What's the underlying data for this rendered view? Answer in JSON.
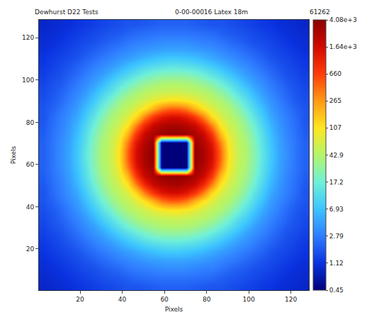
{
  "chart_data": {
    "type": "heatmap",
    "title": "0-00-00016 Latex 18m",
    "annotations": [
      "Dewhurst D22 Tests",
      "61262"
    ],
    "x_label": "Pixels",
    "y_label": "Pixels",
    "x": [
      2.5,
      6.5,
      10.5,
      14.5,
      18.5,
      22.5,
      26.5,
      30.5,
      34.5,
      38.5,
      42.5,
      46.5,
      50.5,
      54.5,
      58.5,
      62.5,
      66.5,
      70.5,
      74.5,
      78.5,
      82.5,
      86.5,
      90.5,
      94.5,
      98.5,
      102.5,
      106.5,
      110.5,
      114.5,
      118.5,
      122.5,
      126.5
    ],
    "y": [
      2.5,
      6.5,
      10.5,
      14.5,
      18.5,
      22.5,
      26.5,
      30.5,
      34.5,
      38.5,
      42.5,
      46.5,
      50.5,
      54.5,
      58.5,
      62.5,
      66.5,
      70.5,
      74.5,
      78.5,
      82.5,
      86.5,
      90.5,
      94.5,
      98.5,
      102.5,
      106.5,
      110.5,
      114.5,
      118.5,
      122.5,
      126.5
    ],
    "z": [
      [
        0.9,
        0.95,
        1.0,
        1.05,
        1.15,
        1.2,
        1.3,
        1.4,
        1.5,
        1.6,
        1.7,
        1.7,
        1.8,
        1.9,
        2.0,
        2.0,
        2.0,
        2.0,
        1.9,
        1.8,
        1.7,
        1.7,
        1.6,
        1.5,
        1.4,
        1.3,
        1.2,
        1.15,
        1.05,
        1.0,
        0.95,
        0.9
      ],
      [
        0.95,
        1.0,
        1.05,
        1.15,
        1.25,
        1.35,
        1.45,
        1.6,
        1.7,
        1.8,
        2.0,
        2.2,
        2.3,
        2.4,
        2.5,
        2.5,
        2.5,
        2.5,
        2.4,
        2.3,
        2.2,
        2.0,
        1.8,
        1.7,
        1.6,
        1.45,
        1.35,
        1.25,
        1.15,
        1.05,
        1.0,
        0.95
      ],
      [
        1.0,
        1.05,
        1.15,
        1.25,
        1.4,
        1.5,
        1.6,
        1.8,
        2.0,
        2.2,
        2.5,
        2.8,
        2.9,
        3.1,
        3.3,
        3.4,
        3.4,
        3.3,
        3.1,
        2.9,
        2.8,
        2.5,
        2.2,
        2.0,
        1.8,
        1.6,
        1.5,
        1.4,
        1.25,
        1.15,
        1.05,
        1.0
      ],
      [
        1.05,
        1.15,
        1.25,
        1.4,
        1.5,
        1.7,
        1.9,
        2.2,
        2.5,
        2.8,
        3.2,
        3.6,
        3.9,
        4.2,
        4.5,
        4.6,
        4.6,
        4.5,
        4.2,
        3.9,
        3.6,
        3.2,
        2.8,
        2.5,
        2.2,
        1.9,
        1.7,
        1.5,
        1.4,
        1.25,
        1.15,
        1.05
      ],
      [
        1.15,
        1.25,
        1.4,
        1.5,
        1.7,
        2.0,
        2.3,
        2.7,
        3.1,
        3.7,
        4.2,
        4.9,
        5.8,
        6.5,
        7.2,
        7.5,
        7.5,
        7.2,
        6.5,
        5.8,
        4.9,
        4.2,
        3.7,
        3.1,
        2.7,
        2.3,
        2.0,
        1.7,
        1.5,
        1.4,
        1.25,
        1.15
      ],
      [
        1.2,
        1.35,
        1.5,
        1.7,
        2.0,
        2.3,
        2.8,
        3.4,
        4.0,
        4.9,
        6.3,
        7.8,
        9.5,
        11,
        12,
        13,
        13,
        12,
        11,
        9.5,
        7.8,
        6.3,
        4.9,
        4.0,
        3.4,
        2.8,
        2.3,
        2.0,
        1.7,
        1.5,
        1.35,
        1.2
      ],
      [
        1.3,
        1.45,
        1.6,
        1.9,
        2.3,
        2.8,
        3.5,
        4.2,
        5.6,
        7.5,
        10,
        13,
        17,
        20,
        23,
        24,
        24,
        23,
        20,
        17,
        13,
        10,
        7.5,
        5.6,
        4.2,
        3.5,
        2.8,
        2.3,
        1.9,
        1.6,
        1.45,
        1.3
      ],
      [
        1.4,
        1.6,
        1.8,
        2.2,
        2.7,
        3.4,
        4.2,
        5.8,
        8.5,
        12,
        17,
        23,
        29,
        34,
        38,
        40,
        40,
        38,
        34,
        29,
        23,
        17,
        12,
        8.5,
        5.8,
        4.2,
        3.4,
        2.7,
        2.2,
        1.8,
        1.6,
        1.4
      ],
      [
        1.5,
        1.7,
        2.0,
        2.5,
        3.1,
        4.0,
        5.6,
        8.5,
        12,
        19,
        27,
        36,
        43,
        48,
        53,
        55,
        55,
        53,
        48,
        43,
        36,
        27,
        19,
        12,
        8.5,
        5.6,
        4.0,
        3.1,
        2.5,
        2.0,
        1.7,
        1.5
      ],
      [
        1.6,
        1.8,
        2.2,
        2.8,
        3.7,
        4.9,
        7.5,
        12,
        19,
        29,
        40,
        48,
        60,
        77,
        95,
        108,
        108,
        95,
        77,
        60,
        48,
        40,
        29,
        19,
        12,
        7.5,
        4.9,
        3.7,
        2.8,
        2.2,
        1.8,
        1.6
      ],
      [
        1.7,
        2.0,
        2.5,
        3.2,
        4.2,
        6.3,
        10,
        17,
        27,
        40,
        50,
        70,
        108,
        190,
        340,
        440,
        440,
        340,
        190,
        108,
        70,
        50,
        40,
        27,
        17,
        10,
        6.3,
        4.2,
        3.2,
        2.5,
        2.0,
        1.7
      ],
      [
        1.7,
        2.2,
        2.8,
        3.6,
        4.9,
        7.8,
        13,
        23,
        36,
        48,
        70,
        125,
        340,
        750,
        1250,
        1550,
        1550,
        1250,
        750,
        340,
        125,
        70,
        48,
        36,
        23,
        13,
        7.8,
        4.9,
        3.6,
        2.8,
        2.2,
        1.7
      ],
      [
        1.8,
        2.3,
        2.9,
        3.9,
        5.8,
        9.5,
        17,
        29,
        43,
        60,
        108,
        340,
        950,
        1850,
        2450,
        2800,
        2800,
        2450,
        1850,
        950,
        340,
        108,
        60,
        43,
        29,
        17,
        9.5,
        5.8,
        3.9,
        2.9,
        2.3,
        1.8
      ],
      [
        1.9,
        2.4,
        3.1,
        4.2,
        6.5,
        11,
        20,
        34,
        48,
        77,
        190,
        750,
        1850,
        2800,
        3400,
        3800,
        3800,
        3400,
        2800,
        1850,
        750,
        190,
        77,
        48,
        34,
        20,
        11,
        6.5,
        4.2,
        3.1,
        2.4,
        1.9
      ],
      [
        2.0,
        2.5,
        3.3,
        4.5,
        7.2,
        12,
        23,
        38,
        53,
        95,
        340,
        1250,
        2450,
        3400,
        0.45,
        0.45,
        0.45,
        0.45,
        3400,
        2450,
        1250,
        340,
        95,
        53,
        38,
        23,
        12,
        7.2,
        4.5,
        3.3,
        2.5,
        2.0
      ],
      [
        2.0,
        2.5,
        3.4,
        4.6,
        7.5,
        13,
        24,
        40,
        55,
        108,
        440,
        1550,
        2800,
        3800,
        0.45,
        0.45,
        0.45,
        0.45,
        3800,
        2800,
        1550,
        440,
        108,
        55,
        40,
        24,
        13,
        7.5,
        4.6,
        3.4,
        2.5,
        2.0
      ],
      [
        2.0,
        2.5,
        3.4,
        4.6,
        7.5,
        13,
        24,
        40,
        55,
        108,
        440,
        1550,
        2800,
        3800,
        0.45,
        0.45,
        0.45,
        0.45,
        3800,
        2800,
        1550,
        440,
        108,
        55,
        40,
        24,
        13,
        7.5,
        4.6,
        3.4,
        2.5,
        2.0
      ],
      [
        2.0,
        2.5,
        3.3,
        4.5,
        7.2,
        12,
        23,
        38,
        53,
        95,
        340,
        1250,
        2450,
        3400,
        0.45,
        0.45,
        0.45,
        0.45,
        3400,
        2450,
        1250,
        340,
        95,
        53,
        38,
        23,
        12,
        7.2,
        4.5,
        3.3,
        2.5,
        2.0
      ],
      [
        1.9,
        2.4,
        3.1,
        4.2,
        6.5,
        11,
        20,
        34,
        48,
        77,
        190,
        750,
        1850,
        2800,
        3400,
        3800,
        3800,
        3400,
        2800,
        1850,
        750,
        190,
        77,
        48,
        34,
        20,
        11,
        6.5,
        4.2,
        3.1,
        2.4,
        1.9
      ],
      [
        1.8,
        2.3,
        2.9,
        3.9,
        5.8,
        9.5,
        17,
        29,
        43,
        60,
        108,
        340,
        950,
        1850,
        2450,
        2800,
        2800,
        2450,
        1850,
        950,
        340,
        108,
        60,
        43,
        29,
        17,
        9.5,
        5.8,
        3.9,
        2.9,
        2.3,
        1.8
      ],
      [
        1.7,
        2.2,
        2.8,
        3.6,
        4.9,
        7.8,
        13,
        23,
        36,
        48,
        70,
        125,
        340,
        750,
        1250,
        1550,
        1550,
        1250,
        750,
        340,
        125,
        70,
        48,
        36,
        23,
        13,
        7.8,
        4.9,
        3.6,
        2.8,
        2.2,
        1.7
      ],
      [
        1.7,
        2.0,
        2.5,
        3.2,
        4.2,
        6.3,
        10,
        17,
        27,
        40,
        50,
        70,
        108,
        190,
        340,
        440,
        440,
        340,
        190,
        108,
        70,
        50,
        40,
        27,
        17,
        10,
        6.3,
        4.2,
        3.2,
        2.5,
        2.0,
        1.7
      ],
      [
        1.6,
        1.8,
        2.2,
        2.8,
        3.7,
        4.9,
        7.5,
        12,
        19,
        29,
        40,
        48,
        60,
        77,
        95,
        108,
        108,
        95,
        77,
        60,
        48,
        40,
        29,
        19,
        12,
        7.5,
        4.9,
        3.7,
        2.8,
        2.2,
        1.8,
        1.6
      ],
      [
        1.5,
        1.7,
        2.0,
        2.5,
        3.1,
        4.0,
        5.6,
        8.5,
        12,
        19,
        27,
        36,
        43,
        48,
        53,
        55,
        55,
        53,
        48,
        43,
        36,
        27,
        19,
        12,
        8.5,
        5.6,
        4.0,
        3.1,
        2.5,
        2.0,
        1.7,
        1.5
      ],
      [
        1.4,
        1.6,
        1.8,
        2.2,
        2.7,
        3.4,
        4.2,
        5.8,
        8.5,
        12,
        17,
        23,
        29,
        34,
        38,
        40,
        40,
        38,
        34,
        29,
        23,
        17,
        12,
        8.5,
        5.8,
        4.2,
        3.4,
        2.7,
        2.2,
        1.8,
        1.6,
        1.4
      ],
      [
        1.3,
        1.45,
        1.6,
        1.9,
        2.3,
        2.8,
        3.5,
        4.2,
        5.6,
        7.5,
        10,
        13,
        17,
        20,
        23,
        24,
        24,
        23,
        20,
        17,
        13,
        10,
        7.5,
        5.6,
        4.2,
        3.5,
        2.8,
        2.3,
        1.9,
        1.6,
        1.45,
        1.3
      ],
      [
        1.2,
        1.35,
        1.5,
        1.7,
        2.0,
        2.3,
        2.8,
        3.4,
        4.0,
        4.9,
        6.3,
        7.8,
        9.5,
        11,
        12,
        13,
        13,
        12,
        11,
        9.5,
        7.8,
        6.3,
        4.9,
        4.0,
        3.4,
        2.8,
        2.3,
        2.0,
        1.7,
        1.5,
        1.35,
        1.2
      ],
      [
        1.15,
        1.25,
        1.4,
        1.5,
        1.7,
        2.0,
        2.3,
        2.7,
        3.1,
        3.7,
        4.2,
        4.9,
        5.8,
        6.5,
        7.2,
        7.5,
        7.5,
        7.2,
        6.5,
        5.8,
        4.9,
        4.2,
        3.7,
        3.1,
        2.7,
        2.3,
        2.0,
        1.7,
        1.5,
        1.4,
        1.25,
        1.15
      ],
      [
        1.05,
        1.15,
        1.25,
        1.4,
        1.5,
        1.7,
        1.9,
        2.2,
        2.5,
        2.8,
        3.2,
        3.6,
        3.9,
        4.2,
        4.5,
        4.6,
        4.6,
        4.5,
        4.2,
        3.9,
        3.6,
        3.2,
        2.8,
        2.5,
        2.2,
        1.9,
        1.7,
        1.5,
        1.4,
        1.25,
        1.15,
        1.05
      ],
      [
        1.0,
        1.05,
        1.15,
        1.25,
        1.4,
        1.5,
        1.6,
        1.8,
        2.0,
        2.2,
        2.5,
        2.8,
        2.9,
        3.1,
        3.3,
        3.4,
        3.4,
        3.3,
        3.1,
        2.9,
        2.8,
        2.5,
        2.2,
        2.0,
        1.8,
        1.6,
        1.5,
        1.4,
        1.25,
        1.15,
        1.05,
        1.0
      ],
      [
        0.95,
        1.0,
        1.05,
        1.15,
        1.25,
        1.35,
        1.45,
        1.6,
        1.7,
        1.8,
        2.0,
        2.2,
        2.3,
        2.4,
        2.5,
        2.5,
        2.5,
        2.5,
        2.4,
        2.3,
        2.2,
        2.0,
        1.8,
        1.7,
        1.6,
        1.45,
        1.35,
        1.25,
        1.15,
        1.05,
        1.0,
        0.95
      ],
      [
        0.9,
        0.95,
        1.0,
        1.05,
        1.15,
        1.2,
        1.3,
        1.4,
        1.5,
        1.6,
        1.7,
        1.7,
        1.8,
        1.9,
        2.0,
        2.0,
        2.0,
        2.0,
        1.9,
        1.8,
        1.7,
        1.7,
        1.6,
        1.5,
        1.4,
        1.3,
        1.2,
        1.15,
        1.05,
        1.0,
        0.95,
        0.9
      ]
    ],
    "xlim": [
      0.5,
      128.5
    ],
    "ylim": [
      0.5,
      128.5
    ],
    "xticks": [
      20,
      40,
      60,
      80,
      100,
      120
    ],
    "yticks": [
      20,
      40,
      60,
      80,
      100,
      120
    ],
    "colorbar": {
      "range": [
        0.45,
        4080
      ],
      "log": true,
      "ticks": [
        0.45,
        1.12,
        2.79,
        6.93,
        17.2,
        42.9,
        107,
        265,
        660,
        {
          "value": 1640,
          "label": "1.64e+3"
        },
        {
          "value": 4080,
          "label": "4.08e+3"
        }
      ]
    }
  }
}
